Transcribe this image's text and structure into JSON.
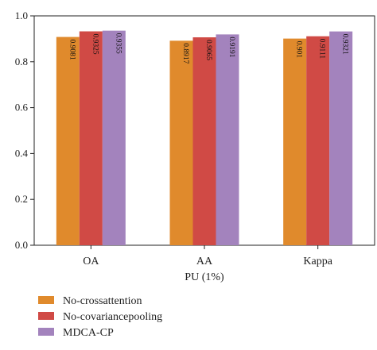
{
  "chart_data": {
    "type": "bar",
    "categories": [
      "OA",
      "AA",
      "Kappa"
    ],
    "xlabel": "PU (1%)",
    "ylabel": "",
    "ylim": [
      0,
      1.0
    ],
    "yticks": [
      "0.0",
      "0.2",
      "0.4",
      "0.6",
      "0.8",
      "1.0"
    ],
    "grid": false,
    "legend_position": "bottom-left",
    "series": [
      {
        "name": "No-crossattention",
        "color": "#e08a2c",
        "values": [
          0.9081,
          0.8917,
          0.901
        ],
        "labels": [
          "0.9081",
          "0.8917",
          "0.901"
        ]
      },
      {
        "name": "No-covariancepooling",
        "color": "#d04a45",
        "values": [
          0.9325,
          0.9065,
          0.9111
        ],
        "labels": [
          "0.9325",
          "0.9065",
          "0.9111"
        ]
      },
      {
        "name": "MDCA-CP",
        "color": "#a383bd",
        "values": [
          0.9355,
          0.9191,
          0.9321
        ],
        "labels": [
          "0.9355",
          "0.9191",
          "0.9321"
        ]
      }
    ]
  }
}
